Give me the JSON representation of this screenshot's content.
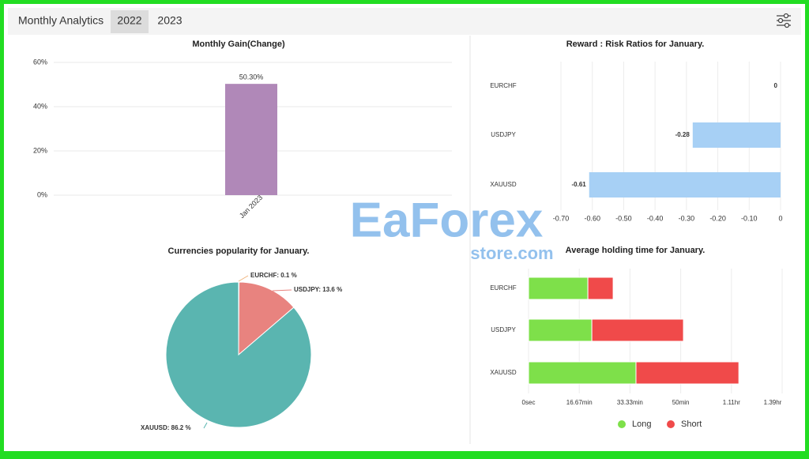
{
  "header": {
    "title": "Monthly Analytics",
    "tabs": [
      "2022",
      "2023"
    ]
  },
  "watermark": {
    "brand": "EaForex",
    "site": "store.com"
  },
  "chart_data": [
    {
      "type": "bar",
      "title": "Monthly Gain(Change)",
      "categories": [
        "Jan 2023"
      ],
      "values": [
        50.3
      ],
      "value_labels": [
        "50.30%"
      ],
      "color": "#b088b8",
      "ylim": [
        0,
        60
      ],
      "yticks": [
        {
          "value": 0,
          "label": "0%"
        },
        {
          "value": 20,
          "label": "20%"
        },
        {
          "value": 40,
          "label": "40%"
        },
        {
          "value": 60,
          "label": "60%"
        }
      ],
      "grid": true
    },
    {
      "type": "hbar",
      "title": "Reward : Risk Ratios for January.",
      "categories": [
        "EURCHF",
        "USDJPY",
        "XAUUSD"
      ],
      "values": [
        0,
        -0.28,
        -0.61
      ],
      "color": "#a7d0f5",
      "xlim": [
        -0.7,
        0
      ],
      "xticks": [
        {
          "value": -0.7,
          "label": "-0.70"
        },
        {
          "value": -0.6,
          "label": "-0.60"
        },
        {
          "value": -0.5,
          "label": "-0.50"
        },
        {
          "value": -0.4,
          "label": "-0.40"
        },
        {
          "value": -0.3,
          "label": "-0.30"
        },
        {
          "value": -0.2,
          "label": "-0.20"
        },
        {
          "value": -0.1,
          "label": "-0.10"
        },
        0
      ],
      "grid": true
    },
    {
      "type": "pie",
      "title": "Currencies popularity for January.",
      "categories": [
        "EURCHF",
        "USDJPY",
        "XAUUSD"
      ],
      "values": [
        0.1,
        13.6,
        86.2
      ],
      "value_labels": [
        "EURCHF: 0.1 %",
        "USDJPY: 13.6 %",
        "XAUUSD: 86.2 %"
      ],
      "colors": [
        "#f0b27a",
        "#e8837f",
        "#5ab5b0"
      ]
    },
    {
      "type": "stacked-hbar",
      "title": "Average holding time for January.",
      "categories": [
        "EURCHF",
        "USDJPY",
        "XAUUSD"
      ],
      "series": [
        {
          "name": "Long",
          "color": "#7ee04a",
          "values": [
            19.5,
            20.8,
            35.3
          ]
        },
        {
          "name": "Short",
          "color": "#f04a4a",
          "values": [
            8.3,
            30.1,
            33.8
          ]
        }
      ],
      "xlim": [
        0,
        83.33
      ],
      "xticks": [
        {
          "value": 0,
          "label": "0sec"
        },
        {
          "value": 16.67,
          "label": "16.67min"
        },
        {
          "value": 33.33,
          "label": "33.33min"
        },
        {
          "value": 50,
          "label": "50min"
        },
        {
          "value": 66.67,
          "label": "1.11hr"
        },
        {
          "value": 83.33,
          "label": "1.39hr"
        }
      ],
      "grid": true,
      "legend": "bottom"
    }
  ]
}
